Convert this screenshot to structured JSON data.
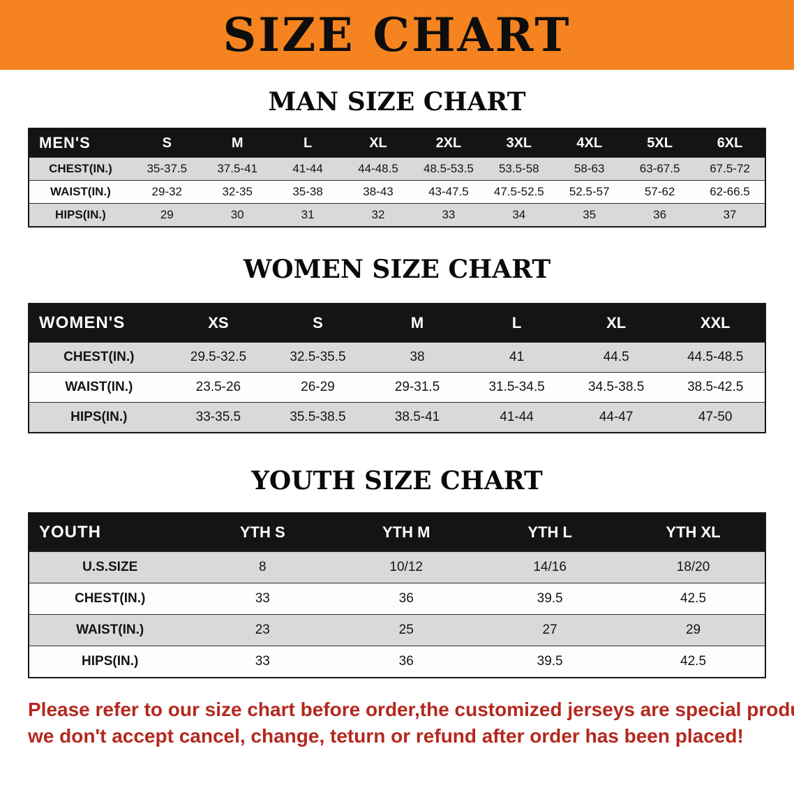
{
  "banner": {
    "title": "SIZE CHART",
    "background": "#f5831f",
    "text_color": "#0d0d0d"
  },
  "sections": [
    {
      "id": "mens",
      "heading": "MAN SIZE CHART",
      "table": {
        "header": [
          "MEN'S",
          "S",
          "M",
          "L",
          "XL",
          "2XL",
          "3XL",
          "4XL",
          "5XL",
          "6XL"
        ],
        "rows": [
          {
            "label": "CHEST(IN.)",
            "values": [
              "35-37.5",
              "37.5-41",
              "41-44",
              "44-48.5",
              "48.5-53.5",
              "53.5-58",
              "58-63",
              "63-67.5",
              "67.5-72"
            ]
          },
          {
            "label": "WAIST(IN.)",
            "values": [
              "29-32",
              "32-35",
              "35-38",
              "38-43",
              "43-47.5",
              "47.5-52.5",
              "52.5-57",
              "57-62",
              "62-66.5"
            ]
          },
          {
            "label": "HIPS(IN.)",
            "values": [
              "29",
              "30",
              "31",
              "32",
              "33",
              "34",
              "35",
              "36",
              "37"
            ]
          }
        ]
      }
    },
    {
      "id": "womens",
      "heading": "WOMEN SIZE CHART",
      "table": {
        "header": [
          "WOMEN'S",
          "XS",
          "S",
          "M",
          "L",
          "XL",
          "XXL"
        ],
        "rows": [
          {
            "label": "CHEST(IN.)",
            "values": [
              "29.5-32.5",
              "32.5-35.5",
              "38",
              "41",
              "44.5",
              "44.5-48.5"
            ]
          },
          {
            "label": "WAIST(IN.)",
            "values": [
              "23.5-26",
              "26-29",
              "29-31.5",
              "31.5-34.5",
              "34.5-38.5",
              "38.5-42.5"
            ]
          },
          {
            "label": "HIPS(IN.)",
            "values": [
              "33-35.5",
              "35.5-38.5",
              "38.5-41",
              "41-44",
              "44-47",
              "47-50"
            ]
          }
        ]
      }
    },
    {
      "id": "youth",
      "heading": "YOUTH SIZE CHART",
      "table": {
        "header": [
          "YOUTH",
          "YTH S",
          "YTH M",
          "YTH L",
          "YTH XL"
        ],
        "rows": [
          {
            "label": "U.S.SIZE",
            "values": [
              "8",
              "10/12",
              "14/16",
              "18/20"
            ]
          },
          {
            "label": "CHEST(IN.)",
            "values": [
              "33",
              "36",
              "39.5",
              "42.5"
            ]
          },
          {
            "label": "WAIST(IN.)",
            "values": [
              "23",
              "25",
              "27",
              "29"
            ]
          },
          {
            "label": "HIPS(IN.)",
            "values": [
              "33",
              "36",
              "39.5",
              "42.5"
            ]
          }
        ]
      }
    }
  ],
  "footer": {
    "lines": [
      "Please refer to our size chart before order,the customized jerseys are special products,",
      "we don't accept cancel, change, teturn or refund after order has been placed!"
    ],
    "color": "#b4281e"
  },
  "colors": {
    "header_bar": "#141414",
    "row_gray": "#d9d9d9",
    "row_white": "#fdfdfd"
  }
}
